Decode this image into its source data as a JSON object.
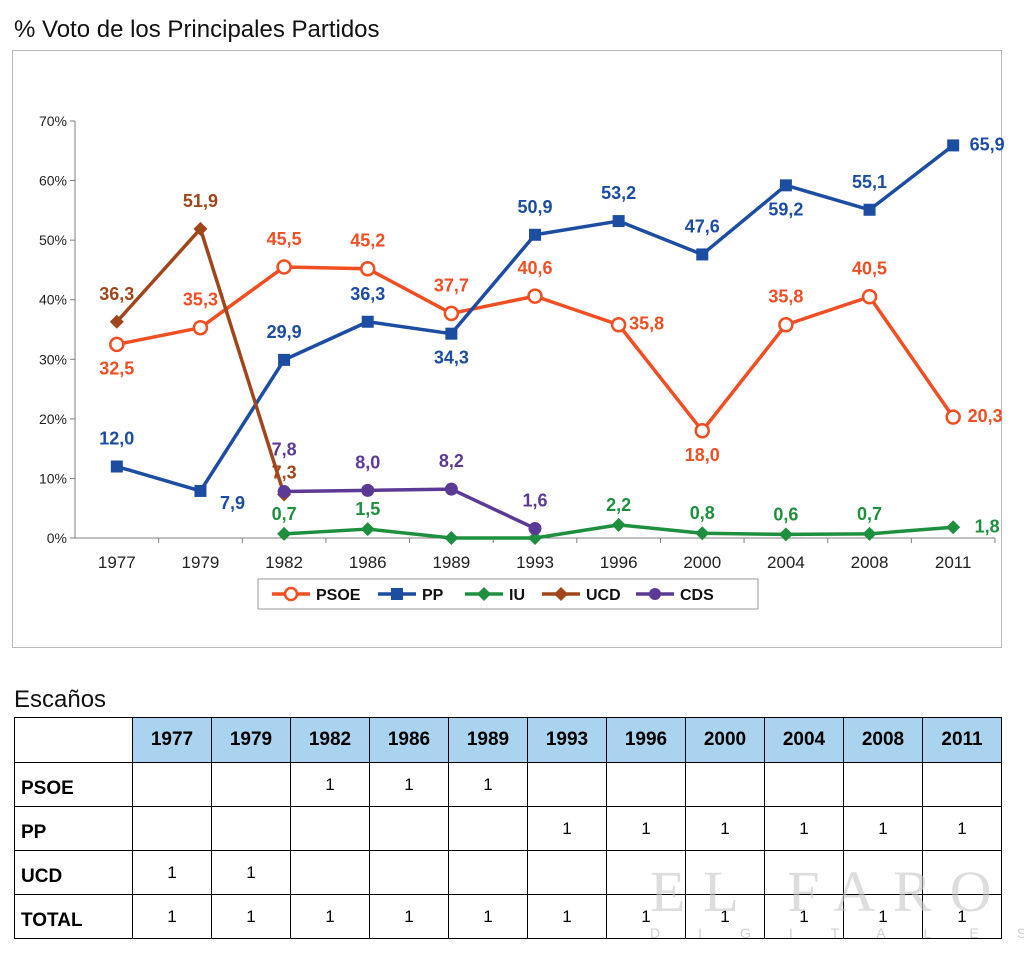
{
  "chart_data": {
    "type": "line",
    "title": "% Voto de los Principales Partidos",
    "categories": [
      "1977",
      "1979",
      "1982",
      "1986",
      "1989",
      "1993",
      "1996",
      "2000",
      "2004",
      "2008",
      "2011"
    ],
    "ylim": [
      0,
      70
    ],
    "yticks": [
      "0%",
      "10%",
      "20%",
      "30%",
      "40%",
      "50%",
      "60%",
      "70%"
    ],
    "legend_position": "bottom",
    "grid": false,
    "series": [
      {
        "name": "PSOE",
        "color": "#f04e23",
        "marker": "circle-open",
        "values": [
          32.5,
          35.3,
          45.5,
          45.2,
          37.7,
          40.6,
          35.8,
          18.0,
          35.8,
          40.5,
          20.3
        ],
        "labels": [
          "32,5",
          "35,3",
          "45,5",
          "45,2",
          "37,7",
          "40,6",
          "35,8",
          "18,0",
          "35,8",
          "40,5",
          "20,3"
        ]
      },
      {
        "name": "PP",
        "color": "#1c4da1",
        "marker": "square",
        "values": [
          12.0,
          7.9,
          29.9,
          36.3,
          34.3,
          50.9,
          53.2,
          47.6,
          59.2,
          55.1,
          65.9
        ],
        "labels": [
          "12,0",
          "7,9",
          "29,9",
          "36,3",
          "34,3",
          "50,9",
          "53,2",
          "47,6",
          "59,2",
          "55,1",
          "65,9"
        ]
      },
      {
        "name": "IU",
        "color": "#1e8f3e",
        "marker": "diamond",
        "values": [
          null,
          null,
          0.7,
          1.5,
          0.0,
          0.0,
          2.2,
          0.8,
          0.6,
          0.7,
          1.8
        ],
        "labels": [
          null,
          null,
          "0,7",
          "1,5",
          null,
          null,
          "2,2",
          "0,8",
          "0,6",
          "0,7",
          "1,8"
        ]
      },
      {
        "name": "UCD",
        "color": "#a0461c",
        "marker": "diamond",
        "values": [
          36.3,
          51.9,
          7.3,
          null,
          null,
          null,
          null,
          null,
          null,
          null,
          null
        ],
        "labels": [
          "36,3",
          "51,9",
          "7,3",
          null,
          null,
          null,
          null,
          null,
          null,
          null,
          null
        ]
      },
      {
        "name": "CDS",
        "color": "#5b3a96",
        "marker": "circle",
        "values": [
          null,
          null,
          7.8,
          8.0,
          8.2,
          1.6,
          null,
          null,
          null,
          null,
          null
        ],
        "labels": [
          null,
          null,
          "7,8",
          "8,0",
          "8,2",
          "1,6",
          null,
          null,
          null,
          null,
          null
        ]
      }
    ]
  },
  "seats_table": {
    "title": "Escaños",
    "columns": [
      "1977",
      "1979",
      "1982",
      "1986",
      "1989",
      "1993",
      "1996",
      "2000",
      "2004",
      "2008",
      "2011"
    ],
    "rows": [
      {
        "label": "PSOE",
        "values": [
          "",
          "",
          "1",
          "1",
          "1",
          "",
          "",
          "",
          "",
          "",
          ""
        ]
      },
      {
        "label": "PP",
        "values": [
          "",
          "",
          "",
          "",
          "",
          "1",
          "1",
          "1",
          "1",
          "1",
          "1"
        ]
      },
      {
        "label": "UCD",
        "values": [
          "1",
          "1",
          "",
          "",
          "",
          "",
          "",
          "",
          "",
          "",
          ""
        ]
      },
      {
        "label": "TOTAL",
        "values": [
          "1",
          "1",
          "1",
          "1",
          "1",
          "1",
          "1",
          "1",
          "1",
          "1",
          "1"
        ]
      }
    ]
  },
  "watermark": {
    "logo": "EL FARO",
    "sub": "DIGITAL.ES"
  }
}
